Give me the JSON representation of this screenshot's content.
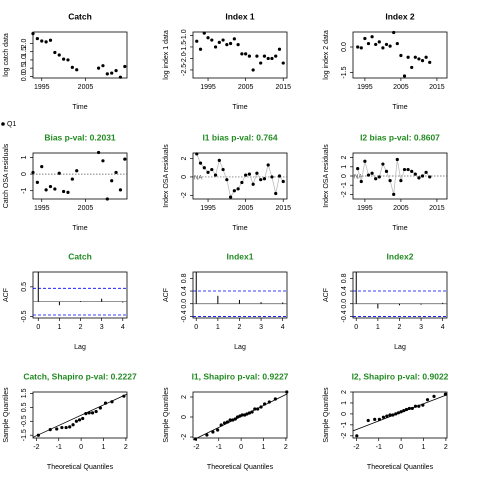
{
  "legend": "Q1",
  "chart_data": [
    {
      "type": "scatter",
      "title": "Catch",
      "xlabel": "Time",
      "ylabel": "log catch data",
      "color": "#000000",
      "title_color": "#000000",
      "x": [
        1993,
        1994,
        1995,
        1996,
        1997,
        1998,
        1999,
        2000,
        2001,
        2002,
        2003,
        2008,
        2009,
        2010,
        2011,
        2012,
        2013,
        2014
      ],
      "values": [
        2.6,
        2.3,
        2.15,
        2.1,
        2.2,
        1.45,
        1.3,
        1.05,
        1.0,
        0.55,
        0.4,
        0.5,
        0.65,
        0.15,
        0.2,
        0.35,
        -0.05,
        0.6
      ],
      "xlim": [
        1993,
        2014.5
      ],
      "xticks": [
        1995,
        2005
      ],
      "ylim": [
        -0.1,
        2.7
      ],
      "yticks": [
        {
          "value": 0,
          "label": "0.0"
        },
        0.5,
        {
          "value": 1,
          "label": "1.0"
        },
        1.5,
        {
          "value": 2,
          "label": "2.0"
        }
      ]
    },
    {
      "type": "scatter",
      "title": "Index 1",
      "xlabel": "Time",
      "ylabel": "log index 1 data",
      "color": "#000000",
      "title_color": "#000000",
      "x": [
        1992,
        1993,
        1994,
        1995,
        1996,
        1997,
        1998,
        1999,
        2000,
        2001,
        2002,
        2003,
        2004,
        2005,
        2006,
        2007,
        2008,
        2009,
        2010,
        2011,
        2012,
        2013,
        2014,
        2015
      ],
      "values": [
        -1.25,
        -1.6,
        -0.9,
        -1.1,
        -1.2,
        -1.5,
        -1.3,
        -1.2,
        -1.4,
        -1.35,
        -1.15,
        -1.4,
        -1.8,
        -1.8,
        -1.9,
        -2.5,
        -1.9,
        -2.2,
        -1.9,
        -2.0,
        -2.0,
        -1.9,
        -1.6,
        -2.2
      ],
      "xlim": [
        1991,
        2016
      ],
      "xticks": [
        1995,
        2005,
        2015
      ],
      "ylim": [
        -2.85,
        -0.85
      ],
      "yticks": [
        {
          "value": -2.5,
          "label": "-2.5"
        },
        {
          "value": -2,
          "label": "-2.0"
        },
        -1.5,
        {
          "value": -1,
          "label": "-1.0"
        }
      ]
    },
    {
      "type": "scatter",
      "title": "Index 2",
      "xlabel": "Time",
      "ylabel": "log index 2 data",
      "color": "#000000",
      "title_color": "#000000",
      "x": [
        1993,
        1994,
        1995,
        1996,
        1997,
        1998,
        1999,
        2000,
        2001,
        2002,
        2003,
        2004,
        2005,
        2006,
        2007,
        2008,
        2009,
        2010,
        2011,
        2012,
        2013
      ],
      "values": [
        0.0,
        -0.05,
        0.5,
        0.2,
        0.6,
        0.15,
        0.3,
        -0.05,
        0.15,
        0.05,
        0.85,
        0.2,
        -0.5,
        -1.7,
        -0.6,
        -1.2,
        -0.6,
        -0.7,
        -0.8,
        -0.6,
        -0.9
      ],
      "xlim": [
        1991.7,
        2017.8
      ],
      "xticks": [
        1995,
        2005,
        2015
      ],
      "ylim": [
        -1.82,
        0.88
      ],
      "yticks": [
        -1.5,
        {
          "value": 0,
          "label": "0.0"
        }
      ]
    },
    {
      "type": "line",
      "title": "Bias p-val: 0.2031",
      "xlabel": "Time",
      "ylabel": "Catch OSA residuals",
      "color": "#000000",
      "title_color": "#228b22",
      "connect": false,
      "hline": 0,
      "x": [
        1993,
        1994,
        1995,
        1996,
        1997,
        1998,
        1999,
        2000,
        2001,
        2002,
        2003,
        2008,
        2009,
        2010,
        2011,
        2012,
        2013,
        2014
      ],
      "values": [
        0.1,
        -0.5,
        0.45,
        -0.95,
        -0.75,
        -0.9,
        0.05,
        -1.05,
        -1.1,
        -0.3,
        0.2,
        1.3,
        0.8,
        -1.5,
        -0.4,
        0.1,
        -0.95,
        0.9
      ],
      "xlim": [
        1993,
        2014.5
      ],
      "xticks": [
        1995,
        2005
      ],
      "ylim": [
        -1.5,
        1.27
      ],
      "yticks": [
        -1,
        0,
        1
      ]
    },
    {
      "type": "line",
      "title": "I1 bias p-val: 0.764",
      "xlabel": "Time",
      "ylabel": "Index OSA residuals",
      "color": "#000000",
      "title_color": "#228b22",
      "connect": true,
      "hline": 0,
      "annotation": "NA",
      "x": [
        1992,
        1993,
        1994,
        1995,
        1996,
        1997,
        1998,
        1999,
        2000,
        2001,
        2002,
        2003,
        2004,
        2005,
        2006,
        2007,
        2008,
        2009,
        2010,
        2011,
        2012,
        2013,
        2014,
        2015
      ],
      "values": [
        2.5,
        1.5,
        1.0,
        0.5,
        0.8,
        0.2,
        1.8,
        0.8,
        -0.3,
        -2.2,
        -1.5,
        -1.3,
        -0.6,
        0.2,
        0.3,
        -0.8,
        0.4,
        -0.3,
        -0.2,
        1.3,
        0.0,
        -1.8,
        0.1,
        -0.5
      ],
      "xlim": [
        1991,
        2016
      ],
      "xticks": [
        1995,
        2005,
        2015
      ],
      "ylim": [
        -2.4,
        2.6
      ],
      "yticks": [
        -2,
        0,
        2
      ]
    },
    {
      "type": "line",
      "title": "I2 bias p-val: 0.8607",
      "xlabel": "Time",
      "ylabel": "Index OSA residuals",
      "color": "#000000",
      "title_color": "#228b22",
      "connect": true,
      "hline": 0,
      "annotation": "NA",
      "x": [
        1993,
        1994,
        1995,
        1996,
        1997,
        1998,
        1999,
        2000,
        2001,
        2002,
        2003,
        2004,
        2005,
        2006,
        2007,
        2008,
        2009,
        2010,
        2011,
        2012,
        2013
      ],
      "values": [
        0.8,
        -0.6,
        1.6,
        0.1,
        0.3,
        -0.3,
        -0.1,
        1.3,
        0.5,
        -0.5,
        -2.0,
        1.8,
        -0.5,
        0.7,
        0.7,
        0.5,
        0.2,
        -0.2,
        0.0,
        0.4,
        -0.1
      ],
      "xlim": [
        1991.7,
        2017.8
      ],
      "xticks": [
        1995,
        2005,
        2015
      ],
      "ylim": [
        -2.5,
        2.5
      ],
      "yticks": [
        -2,
        -1,
        0,
        1,
        2
      ]
    },
    {
      "type": "bar",
      "title": "Catch",
      "xlabel": "Lag",
      "ylabel": "ACF",
      "color": "#000000",
      "title_color": "#228b22",
      "hline": 0,
      "ci": [
        -0.45,
        0.45
      ],
      "ci_color": "#0000ff",
      "x": [
        0,
        1,
        2,
        3,
        4
      ],
      "values": [
        1,
        -0.12,
        0.02,
        0.1,
        -0.03
      ],
      "xlim": [
        -0.25,
        4.2
      ],
      "xticks": [
        0,
        1,
        2,
        3,
        4
      ],
      "ylim": [
        -0.55,
        1.0
      ],
      "yticks": [
        -0.5,
        0.5
      ]
    },
    {
      "type": "bar",
      "title": "Index1",
      "xlabel": "Lag",
      "ylabel": "ACF",
      "color": "#000000",
      "title_color": "#228b22",
      "hline": 0,
      "ci": [
        -0.4,
        0.4
      ],
      "ci_color": "#0000ff",
      "x": [
        0,
        1,
        2,
        3,
        4
      ],
      "values": [
        1,
        0.25,
        0.12,
        0.05,
        0.04
      ],
      "xlim": [
        -0.15,
        4.2
      ],
      "xticks": [
        0,
        1,
        2,
        3,
        4
      ],
      "ylim": [
        -0.45,
        1.0
      ],
      "yticks": [
        -0.4,
        {
          "value": 0,
          "label": "0.0"
        },
        0.4,
        0.8
      ]
    },
    {
      "type": "bar",
      "title": "Index2",
      "xlabel": "Lag",
      "ylabel": "ACF",
      "color": "#000000",
      "title_color": "#228b22",
      "hline": 0,
      "ci": [
        -0.4,
        0.4
      ],
      "ci_color": "#0000ff",
      "x": [
        0,
        1,
        2,
        3,
        4
      ],
      "values": [
        1,
        -0.15,
        -0.05,
        -0.03,
        0.03
      ],
      "xlim": [
        -0.15,
        4.2
      ],
      "xticks": [
        0,
        1,
        2,
        3,
        4
      ],
      "ylim": [
        -0.45,
        1.0
      ],
      "yticks": [
        -0.4,
        {
          "value": 0,
          "label": "0.0"
        },
        0.4,
        0.8
      ]
    },
    {
      "type": "scatter",
      "title": "Catch, Shapiro p-val: 0.2227",
      "xlabel": "Theoretical Quantiles",
      "ylabel": "Sample Quantiles",
      "color": "#000000",
      "title_color": "#228b22",
      "x": [
        -1.91,
        -1.38,
        -1.09,
        -0.86,
        -0.67,
        -0.51,
        -0.36,
        -0.21,
        -0.07,
        0.07,
        0.21,
        0.36,
        0.51,
        0.67,
        0.86,
        1.09,
        1.38,
        1.91
      ],
      "values": [
        -1.5,
        -1.1,
        -1.05,
        -0.95,
        -0.95,
        -0.9,
        -0.75,
        -0.5,
        -0.4,
        -0.3,
        0.05,
        0.1,
        0.1,
        0.2,
        0.45,
        0.8,
        0.9,
        1.3
      ],
      "fit_line": {
        "x": [
          -2.15,
          2.05
        ],
        "y": [
          -1.65,
          1.45
        ]
      },
      "xlim": [
        -2.15,
        2.05
      ],
      "xticks": [
        -2,
        -1,
        0,
        1,
        2
      ],
      "ylim": [
        -1.7,
        1.6
      ],
      "yticks": [
        -1.5,
        -0.5,
        0.5,
        1.5
      ]
    },
    {
      "type": "scatter",
      "title": "I1, Shapiro p-val: 0.9227",
      "xlabel": "Theoretical Quantiles",
      "ylabel": "Sample Quantiles",
      "color": "#000000",
      "title_color": "#228b22",
      "x": [
        -2.04,
        -1.53,
        -1.26,
        -1.05,
        -0.89,
        -0.74,
        -0.61,
        -0.49,
        -0.37,
        -0.26,
        -0.16,
        -0.05,
        0.05,
        0.16,
        0.26,
        0.37,
        0.49,
        0.61,
        0.74,
        0.89,
        1.05,
        1.26,
        1.53,
        2.04
      ],
      "values": [
        -2.2,
        -1.8,
        -1.5,
        -1.3,
        -0.8,
        -0.6,
        -0.5,
        -0.3,
        -0.3,
        -0.2,
        0.0,
        0.1,
        0.2,
        0.2,
        0.3,
        0.4,
        0.5,
        0.8,
        0.8,
        1.0,
        1.3,
        1.5,
        1.8,
        2.5
      ],
      "fit_line": {
        "x": [
          -2.15,
          2.05
        ],
        "y": [
          -2.3,
          2.3
        ]
      },
      "xlim": [
        -2.15,
        2.05
      ],
      "xticks": [
        -2,
        -1,
        0,
        1,
        2
      ],
      "ylim": [
        -2.1,
        2.5
      ],
      "yticks": [
        -2,
        0,
        2
      ]
    },
    {
      "type": "scatter",
      "title": "I2, Shapiro p-val: 0.9022",
      "xlabel": "Theoretical Quantiles",
      "ylabel": "Sample Quantiles",
      "color": "#000000",
      "title_color": "#228b22",
      "x": [
        -1.98,
        -1.47,
        -1.18,
        -0.97,
        -0.79,
        -0.64,
        -0.5,
        -0.37,
        -0.24,
        -0.12,
        0,
        0.12,
        0.24,
        0.37,
        0.5,
        0.64,
        0.79,
        0.97,
        1.18,
        1.47,
        1.98
      ],
      "values": [
        -2.0,
        -0.6,
        -0.5,
        -0.5,
        -0.3,
        -0.2,
        -0.1,
        -0.1,
        0.0,
        0.1,
        0.2,
        0.3,
        0.4,
        0.5,
        0.5,
        0.7,
        0.7,
        0.8,
        1.3,
        1.6,
        1.8
      ],
      "fit_line": {
        "x": [
          -2.15,
          2.05
        ],
        "y": [
          -1.55,
          1.75
        ]
      },
      "xlim": [
        -2.15,
        2.05
      ],
      "xticks": [
        -2,
        -1,
        0,
        1,
        2
      ],
      "ylim": [
        -2.2,
        2.0
      ],
      "yticks": [
        -2,
        -1,
        0,
        1,
        2
      ]
    }
  ]
}
